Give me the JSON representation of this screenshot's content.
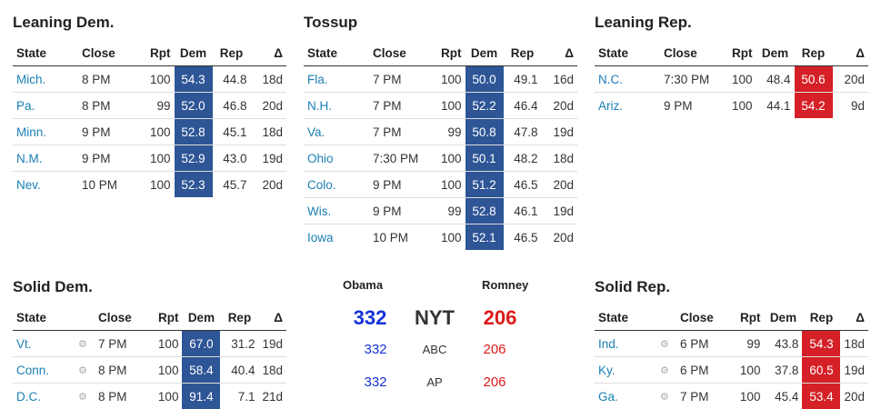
{
  "columns": [
    "State",
    "Close",
    "Rpt",
    "Dem",
    "Rep",
    "Δ"
  ],
  "leaning_dem": {
    "title": "Leaning Dem.",
    "rows": [
      {
        "state": "Mich.",
        "close": "8 PM",
        "rpt": "100",
        "dem": "54.3",
        "rep": "44.8",
        "delta": "18d",
        "winner": "dem"
      },
      {
        "state": "Pa.",
        "close": "8 PM",
        "rpt": "99",
        "dem": "52.0",
        "rep": "46.8",
        "delta": "20d",
        "winner": "dem"
      },
      {
        "state": "Minn.",
        "close": "9 PM",
        "rpt": "100",
        "dem": "52.8",
        "rep": "45.1",
        "delta": "18d",
        "winner": "dem"
      },
      {
        "state": "N.M.",
        "close": "9 PM",
        "rpt": "100",
        "dem": "52.9",
        "rep": "43.0",
        "delta": "19d",
        "winner": "dem"
      },
      {
        "state": "Nev.",
        "close": "10 PM",
        "rpt": "100",
        "dem": "52.3",
        "rep": "45.7",
        "delta": "20d",
        "winner": "dem"
      }
    ]
  },
  "tossup": {
    "title": "Tossup",
    "rows": [
      {
        "state": "Fla.",
        "close": "7 PM",
        "rpt": "100",
        "dem": "50.0",
        "rep": "49.1",
        "delta": "16d",
        "winner": "dem"
      },
      {
        "state": "N.H.",
        "close": "7 PM",
        "rpt": "100",
        "dem": "52.2",
        "rep": "46.4",
        "delta": "20d",
        "winner": "dem"
      },
      {
        "state": "Va.",
        "close": "7 PM",
        "rpt": "99",
        "dem": "50.8",
        "rep": "47.8",
        "delta": "19d",
        "winner": "dem"
      },
      {
        "state": "Ohio",
        "close": "7:30 PM",
        "rpt": "100",
        "dem": "50.1",
        "rep": "48.2",
        "delta": "18d",
        "winner": "dem"
      },
      {
        "state": "Colo.",
        "close": "9 PM",
        "rpt": "100",
        "dem": "51.2",
        "rep": "46.5",
        "delta": "20d",
        "winner": "dem"
      },
      {
        "state": "Wis.",
        "close": "9 PM",
        "rpt": "99",
        "dem": "52.8",
        "rep": "46.1",
        "delta": "19d",
        "winner": "dem"
      },
      {
        "state": "Iowa",
        "close": "10 PM",
        "rpt": "100",
        "dem": "52.1",
        "rep": "46.5",
        "delta": "20d",
        "winner": "dem"
      }
    ]
  },
  "leaning_rep": {
    "title": "Leaning Rep.",
    "rows": [
      {
        "state": "N.C.",
        "close": "7:30 PM",
        "rpt": "100",
        "dem": "48.4",
        "rep": "50.6",
        "delta": "20d",
        "winner": "rep"
      },
      {
        "state": "Ariz.",
        "close": "9 PM",
        "rpt": "100",
        "dem": "44.1",
        "rep": "54.2",
        "delta": "9d",
        "winner": "rep"
      }
    ]
  },
  "solid_dem": {
    "title": "Solid Dem.",
    "rows": [
      {
        "state": "Vt.",
        "close": "7 PM",
        "rpt": "100",
        "dem": "67.0",
        "rep": "31.2",
        "delta": "19d",
        "winner": "dem"
      },
      {
        "state": "Conn.",
        "close": "8 PM",
        "rpt": "100",
        "dem": "58.4",
        "rep": "40.4",
        "delta": "18d",
        "winner": "dem"
      },
      {
        "state": "D.C.",
        "close": "8 PM",
        "rpt": "100",
        "dem": "91.4",
        "rep": "7.1",
        "delta": "21d",
        "winner": "dem"
      }
    ]
  },
  "solid_rep": {
    "title": "Solid Rep.",
    "rows": [
      {
        "state": "Ind.",
        "close": "6 PM",
        "rpt": "99",
        "dem": "43.8",
        "rep": "54.3",
        "delta": "18d",
        "winner": "rep"
      },
      {
        "state": "Ky.",
        "close": "6 PM",
        "rpt": "100",
        "dem": "37.8",
        "rep": "60.5",
        "delta": "19d",
        "winner": "rep"
      },
      {
        "state": "Ga.",
        "close": "7 PM",
        "rpt": "100",
        "dem": "45.4",
        "rep": "53.4",
        "delta": "20d",
        "winner": "rep"
      }
    ]
  },
  "tally": {
    "obama_label": "Obama",
    "romney_label": "Romney",
    "rows": [
      {
        "source": "NYT",
        "obama": "332",
        "romney": "206"
      },
      {
        "source": "ABC",
        "obama": "332",
        "romney": "206"
      },
      {
        "source": "AP",
        "obama": "332",
        "romney": "206"
      }
    ]
  },
  "colors": {
    "dem": "#2e5596",
    "rep": "#d52027",
    "link": "#1a7fb5"
  },
  "icons": {
    "gear": "gear-icon"
  }
}
